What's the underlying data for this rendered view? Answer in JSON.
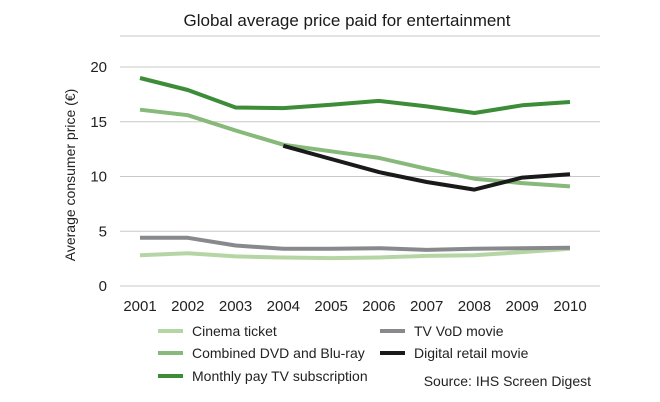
{
  "chart_data": {
    "type": "line",
    "title": "Global average price paid for entertainment",
    "xlabel": "",
    "ylabel": "Average consumer price (€)",
    "x": [
      2001,
      2002,
      2003,
      2004,
      2005,
      2006,
      2007,
      2008,
      2009,
      2010
    ],
    "x_tick_labels": [
      "2001",
      "2002",
      "2003",
      "2004",
      "2005",
      "2006",
      "2007",
      "2008",
      "2009",
      "2010"
    ],
    "ylim": [
      0,
      20
    ],
    "y_ticks": [
      0,
      5,
      10,
      15,
      20
    ],
    "y_tick_labels": [
      "0",
      "5",
      "10",
      "15",
      "20"
    ],
    "grid": "horizontal",
    "legend_placement": "bottom",
    "source": "Source: IHS Screen Digest",
    "series": [
      {
        "name": "Cinema ticket",
        "color": "#b5d6a4",
        "values": [
          2.8,
          3.0,
          2.7,
          2.6,
          2.55,
          2.6,
          2.75,
          2.8,
          3.1,
          3.4
        ]
      },
      {
        "name": "TV VoD movie",
        "color": "#87898c",
        "values": [
          4.4,
          4.4,
          3.7,
          3.4,
          3.4,
          3.45,
          3.3,
          3.4,
          3.45,
          3.5
        ]
      },
      {
        "name": "Combined DVD and Blu-ray",
        "color": "#87b97a",
        "values": [
          16.1,
          15.6,
          14.2,
          12.9,
          12.3,
          11.7,
          10.7,
          9.8,
          9.4,
          9.1
        ]
      },
      {
        "name": "Digital retail movie",
        "color": "#1a1a1a",
        "values": [
          null,
          null,
          null,
          12.8,
          11.6,
          10.4,
          9.5,
          8.8,
          9.9,
          10.2
        ]
      },
      {
        "name": "Monthly pay TV subscription",
        "color": "#3d8c37",
        "values": [
          19.0,
          17.9,
          16.3,
          16.25,
          16.55,
          16.9,
          16.4,
          15.8,
          16.5,
          16.8
        ]
      }
    ],
    "legend_order": [
      "Cinema ticket",
      "TV VoD movie",
      "Combined DVD and Blu-ray",
      "Digital retail movie",
      "Monthly pay TV subscription"
    ]
  }
}
